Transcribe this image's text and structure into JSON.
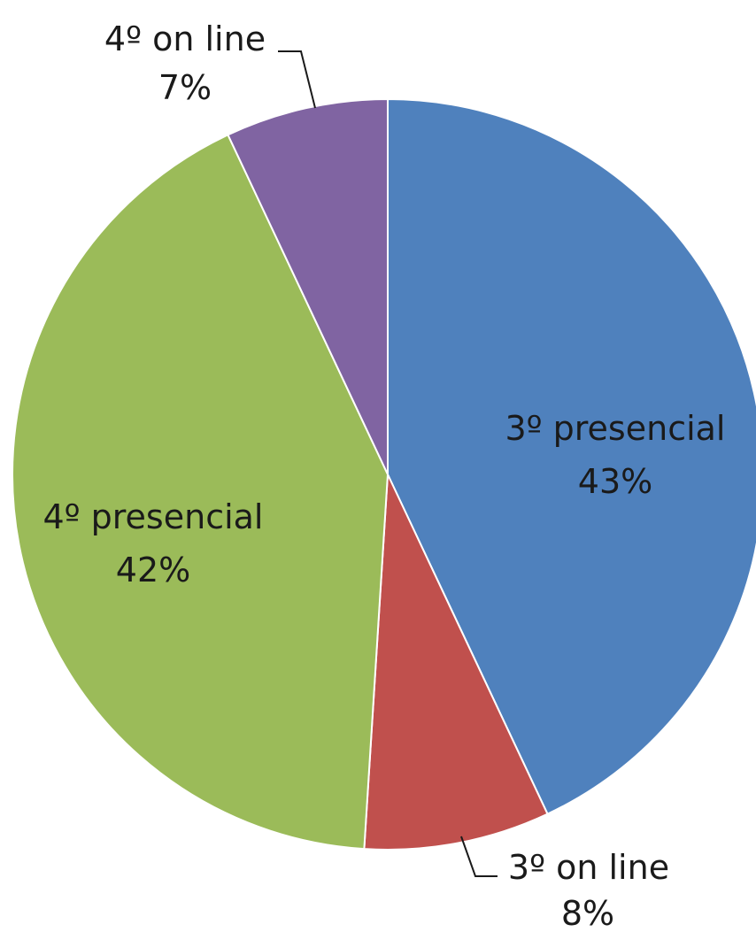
{
  "chart_data": {
    "type": "pie",
    "slices": [
      {
        "name": "3º presencial",
        "value": 43,
        "label": "43%",
        "color": "#4f81bd"
      },
      {
        "name": "3º on line",
        "value": 8,
        "label": "8%",
        "color": "#c0504d"
      },
      {
        "name": "4º presencial",
        "value": 42,
        "label": "42%",
        "color": "#9bbb59"
      },
      {
        "name": "4º on line",
        "value": 7,
        "label": "7%",
        "color": "#8064a2"
      }
    ],
    "start_angle": "12 o'clock",
    "direction": "clockwise",
    "legend": "none",
    "data_labels": "category and percentage"
  }
}
